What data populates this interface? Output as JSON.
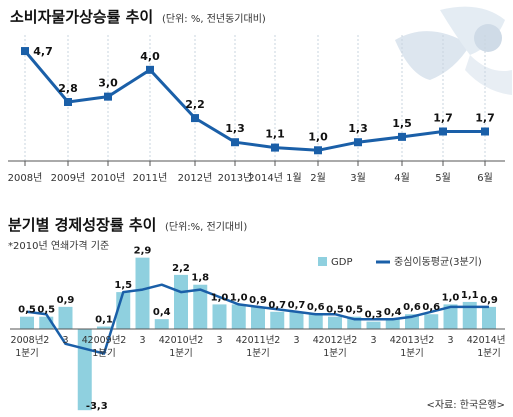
{
  "chart_data": [
    {
      "type": "line",
      "title": "소비자물가상승률 추이",
      "subtitle": "(단위: %, 전년동기대비)",
      "categories": [
        "2008년",
        "2009년",
        "2010년",
        "2011년",
        "2012년",
        "2013년",
        "2014년 1월",
        "2월",
        "3월",
        "4월",
        "5월",
        "6월"
      ],
      "series": [
        {
          "values": [
            4.7,
            2.8,
            3.0,
            4.0,
            2.2,
            1.3,
            1.1,
            1.0,
            1.3,
            1.5,
            1.7,
            1.7
          ]
        }
      ],
      "value_labels": [
        "4,7",
        "2,8",
        "3,0",
        "4,0",
        "2,2",
        "1,3",
        "1,1",
        "1,0",
        "1,3",
        "1,5",
        "1,7",
        "1,7"
      ],
      "ylim": [
        0.6,
        5.0
      ],
      "grid": "vertical dashed",
      "colors": {
        "line": "#1a5fa8",
        "marker": "#1a5fa8",
        "grid": "#c9d4df"
      }
    },
    {
      "type": "bar",
      "title": "분기별 경제성장률 추이",
      "subtitle": "(단위:%, 전기대비)",
      "note": "*2010년 연쇄가격 기준",
      "categories": [
        "2008년 1분기",
        "2",
        "3",
        "4",
        "2009년 1분기",
        "2",
        "3",
        "4",
        "2010년 1분기",
        "2",
        "3",
        "4",
        "2011년 1분기",
        "2",
        "3",
        "4",
        "2012년 1분기",
        "2",
        "3",
        "4",
        "2013년 1분기",
        "2",
        "3",
        "4",
        "2014년 1분기"
      ],
      "tick_labels": [
        {
          "line1": "2008년",
          "line2": "1분기"
        },
        {
          "line1": "2",
          "line2": ""
        },
        {
          "line1": "3",
          "line2": ""
        },
        {
          "line1": "4",
          "line2": ""
        },
        {
          "line1": "2009년",
          "line2": "1분기"
        },
        {
          "line1": "2",
          "line2": ""
        },
        {
          "line1": "3",
          "line2": ""
        },
        {
          "line1": "4",
          "line2": ""
        },
        {
          "line1": "2010년",
          "line2": "1분기"
        },
        {
          "line1": "2",
          "line2": ""
        },
        {
          "line1": "3",
          "line2": ""
        },
        {
          "line1": "4",
          "line2": ""
        },
        {
          "line1": "2011년",
          "line2": "1분기"
        },
        {
          "line1": "2",
          "line2": ""
        },
        {
          "line1": "3",
          "line2": ""
        },
        {
          "line1": "4",
          "line2": ""
        },
        {
          "line1": "2012년",
          "line2": "1분기"
        },
        {
          "line1": "2",
          "line2": ""
        },
        {
          "line1": "3",
          "line2": ""
        },
        {
          "line1": "4",
          "line2": ""
        },
        {
          "line1": "2013년",
          "line2": "1분기"
        },
        {
          "line1": "2",
          "line2": ""
        },
        {
          "line1": "3",
          "line2": ""
        },
        {
          "line1": "4",
          "line2": ""
        },
        {
          "line1": "2014년",
          "line2": "1분기"
        }
      ],
      "series": [
        {
          "name": "GDP",
          "type": "bar",
          "values": [
            0.5,
            0.5,
            0.9,
            -3.3,
            0.1,
            1.5,
            2.9,
            0.4,
            2.2,
            1.8,
            1.0,
            1.0,
            0.9,
            0.7,
            0.7,
            0.6,
            0.5,
            0.5,
            0.3,
            0.4,
            0.6,
            0.6,
            1.0,
            1.1,
            0.9
          ]
        },
        {
          "name": "중심이동평균(3분기)",
          "type": "line",
          "values": [
            0.7,
            0.6,
            -0.6,
            -0.8,
            -1.0,
            1.5,
            1.6,
            1.8,
            1.5,
            1.6,
            1.3,
            1.0,
            0.9,
            0.8,
            0.7,
            0.6,
            0.6,
            0.4,
            0.4,
            0.4,
            0.5,
            0.7,
            0.9,
            0.9,
            0.9
          ]
        }
      ],
      "value_labels": [
        "0,5",
        "0,5",
        "0,9",
        "-3,3",
        "0,1",
        "1,5",
        "2,9",
        "0,4",
        "2,2",
        "1,8",
        "1,0",
        "1,0",
        "0,9",
        "0,7",
        "0,7",
        "0,6",
        "0,5",
        "0,5",
        "0,3",
        "0,4",
        "0,6",
        "0,6",
        "1,0",
        "1,1",
        "0,9"
      ],
      "above_bar_labels": [
        "4",
        "0,4"
      ],
      "ylim": [
        -3.5,
        3.5
      ],
      "legend_position": "top-right",
      "colors": {
        "bar": "#8fd0df",
        "line": "#1a5fa8"
      }
    }
  ],
  "source": "자료: 한국은행",
  "source_brackets": [
    "<",
    ">"
  ],
  "decoration": "ribbon-illustration"
}
